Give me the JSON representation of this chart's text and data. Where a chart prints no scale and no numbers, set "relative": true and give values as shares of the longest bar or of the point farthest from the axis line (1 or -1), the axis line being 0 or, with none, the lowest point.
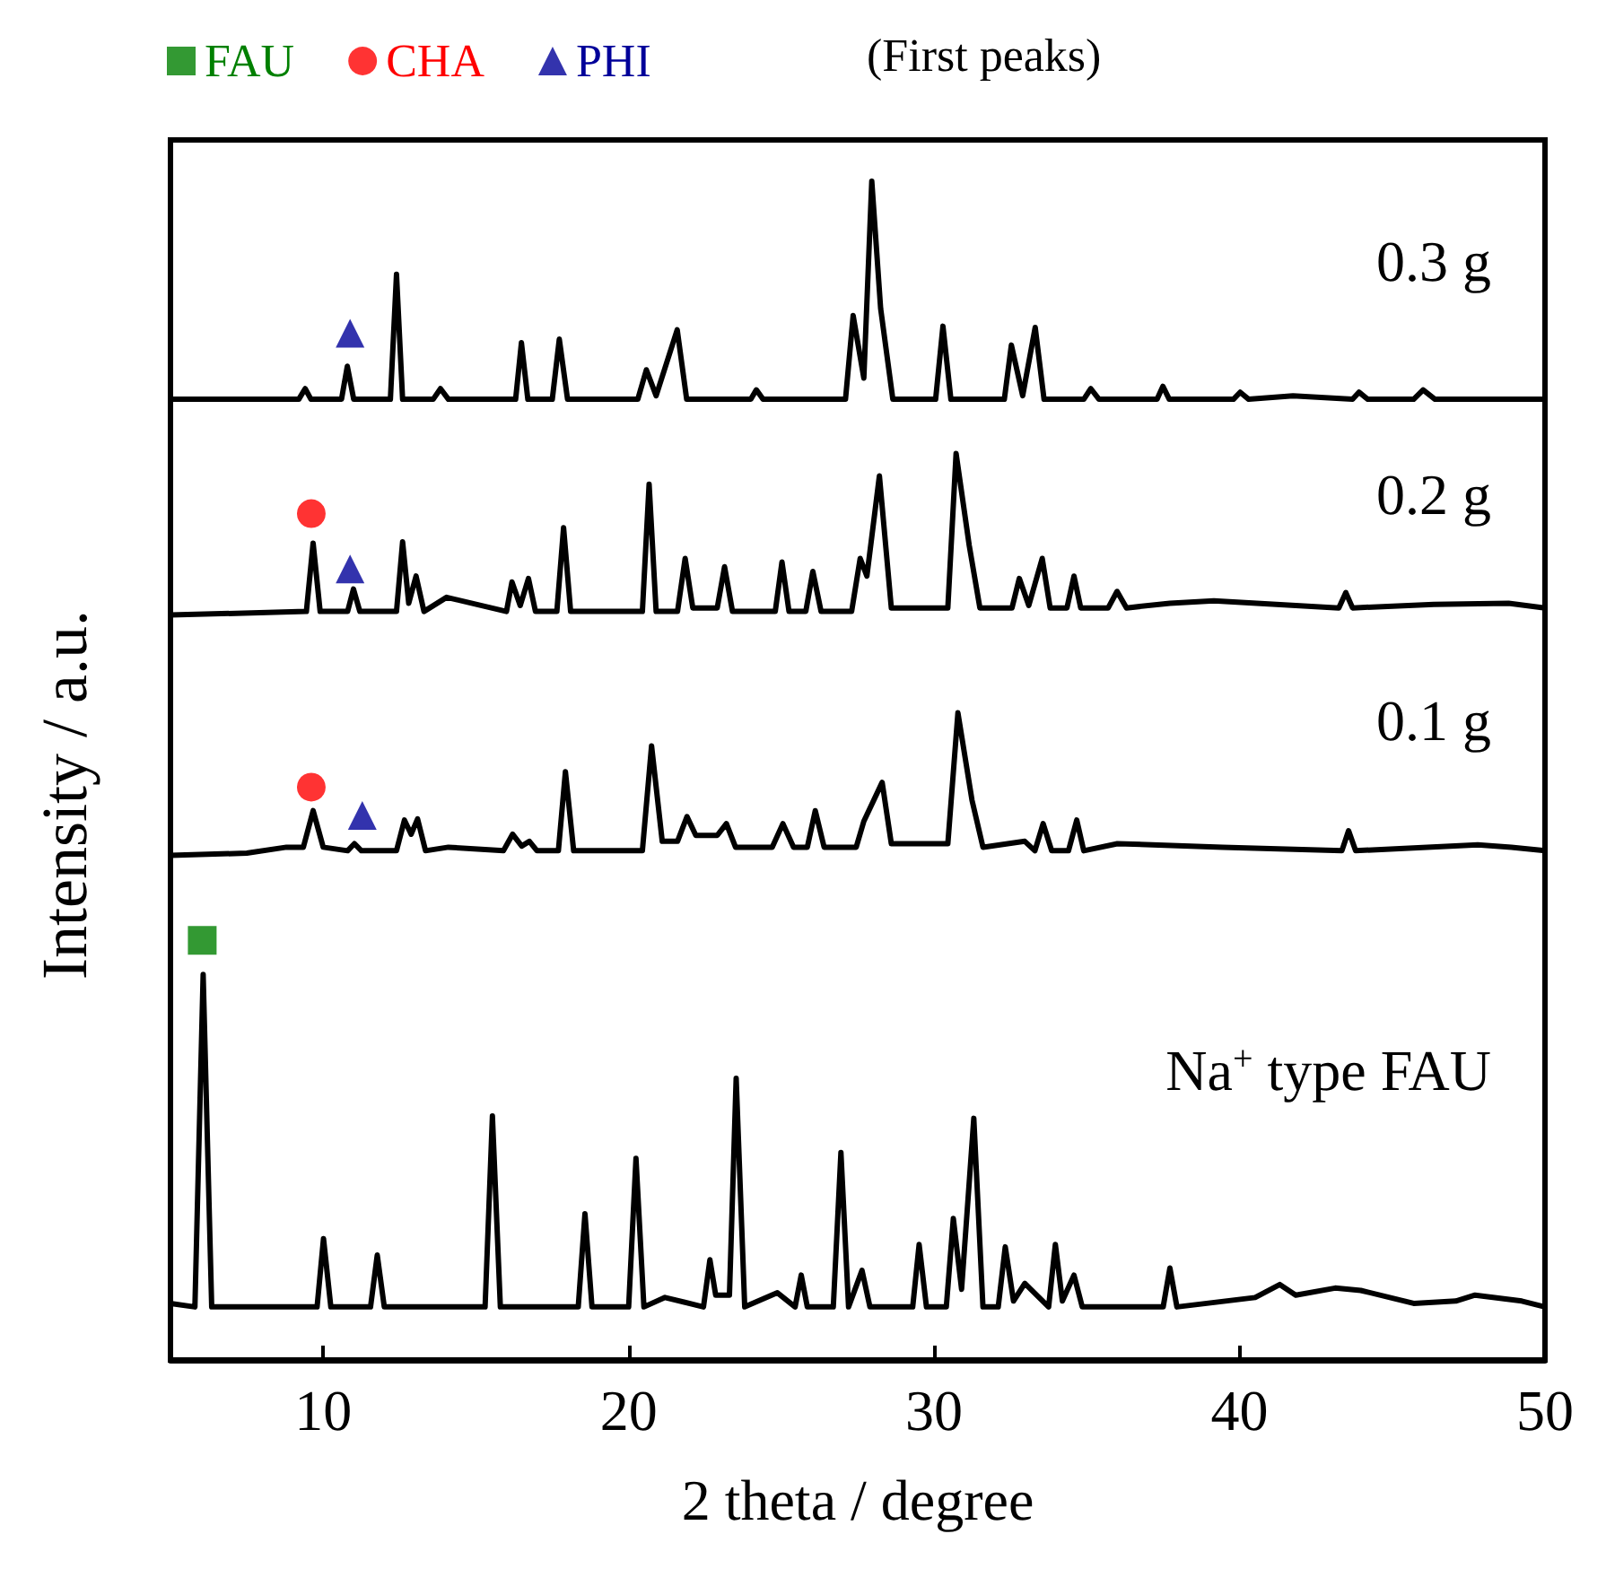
{
  "chart_data": {
    "type": "line",
    "relative": true,
    "xlabel": "2 theta / degree",
    "ylabel": "Intensity / a.u.",
    "xlim": [
      5,
      50
    ],
    "xticks": [
      10,
      20,
      30,
      40,
      50
    ],
    "grid": false,
    "legend": "top",
    "legend_title": "(First peaks)",
    "line_style": "solid",
    "series": [
      {
        "name": "0.3 g",
        "color": "#000000",
        "x": [
          5,
          9.2,
          9.41,
          9.6,
          10.6,
          10.79,
          11.0,
          12.2,
          12.4,
          12.6,
          13.6,
          13.84,
          14.1,
          16.3,
          16.49,
          16.7,
          17.5,
          17.73,
          18.0,
          20.3,
          20.58,
          20.9,
          21.59,
          21.9,
          24.0,
          24.18,
          24.4,
          27.1,
          27.35,
          27.7,
          27.96,
          28.25,
          28.65,
          30.05,
          30.29,
          30.55,
          32.3,
          32.53,
          32.9,
          33.31,
          33.6,
          34.9,
          35.13,
          35.4,
          37.3,
          37.49,
          37.7,
          39.8,
          40.02,
          40.3,
          41.75,
          43.7,
          43.91,
          44.2,
          45.7,
          46.01,
          46.4,
          50
        ],
        "values": [
          0.815,
          0.815,
          0.824,
          0.815,
          0.815,
          0.843,
          0.815,
          0.815,
          0.921,
          0.815,
          0.815,
          0.824,
          0.815,
          0.815,
          0.863,
          0.815,
          0.815,
          0.866,
          0.815,
          0.815,
          0.84,
          0.818,
          0.874,
          0.815,
          0.815,
          0.823,
          0.815,
          0.815,
          0.886,
          0.833,
          1.0,
          0.892,
          0.815,
          0.815,
          0.877,
          0.815,
          0.815,
          0.861,
          0.818,
          0.876,
          0.815,
          0.815,
          0.824,
          0.815,
          0.815,
          0.826,
          0.815,
          0.815,
          0.821,
          0.815,
          0.818,
          0.815,
          0.821,
          0.815,
          0.815,
          0.823,
          0.815,
          0.815
        ]
      },
      {
        "name": "0.2 g",
        "color": "#000000",
        "x": [
          5,
          9.45,
          9.67,
          9.9,
          10.8,
          10.99,
          11.2,
          12.4,
          12.6,
          12.8,
          13.04,
          13.3,
          14.04,
          16.0,
          16.18,
          16.45,
          16.72,
          16.95,
          17.65,
          17.87,
          18.1,
          20.45,
          20.67,
          20.9,
          21.6,
          21.85,
          22.1,
          22.9,
          23.14,
          23.4,
          24.8,
          25.02,
          25.25,
          25.8,
          26.03,
          26.3,
          27.3,
          27.58,
          27.8,
          28.21,
          28.6,
          30.45,
          30.72,
          31.15,
          31.5,
          32.55,
          32.79,
          33.1,
          33.54,
          33.8,
          34.35,
          34.58,
          34.8,
          35.7,
          35.99,
          36.3,
          37.72,
          39.16,
          43.25,
          43.48,
          43.7,
          46.36,
          48.81,
          50
        ],
        "values": [
          0.632,
          0.635,
          0.693,
          0.635,
          0.635,
          0.654,
          0.635,
          0.635,
          0.694,
          0.642,
          0.665,
          0.635,
          0.647,
          0.635,
          0.66,
          0.64,
          0.663,
          0.635,
          0.635,
          0.706,
          0.635,
          0.635,
          0.743,
          0.635,
          0.635,
          0.68,
          0.638,
          0.638,
          0.673,
          0.635,
          0.635,
          0.677,
          0.635,
          0.635,
          0.669,
          0.635,
          0.635,
          0.68,
          0.665,
          0.75,
          0.638,
          0.638,
          0.769,
          0.691,
          0.638,
          0.638,
          0.663,
          0.64,
          0.68,
          0.638,
          0.638,
          0.665,
          0.638,
          0.638,
          0.652,
          0.638,
          0.642,
          0.644,
          0.638,
          0.651,
          0.638,
          0.641,
          0.642,
          0.638
        ]
      },
      {
        "name": "0.1 g",
        "color": "#000000",
        "x": [
          5,
          7.5,
          8.8,
          9.35,
          9.67,
          10.0,
          10.8,
          11.02,
          11.25,
          12.4,
          12.66,
          12.88,
          13.09,
          13.35,
          14.1,
          15.9,
          16.2,
          16.5,
          16.75,
          17.0,
          17.7,
          17.93,
          18.2,
          20.45,
          20.75,
          21.1,
          21.6,
          21.91,
          22.2,
          22.9,
          23.2,
          23.5,
          24.7,
          25.05,
          25.4,
          25.85,
          26.11,
          26.4,
          27.45,
          27.7,
          28.3,
          28.6,
          30.45,
          30.78,
          31.24,
          31.6,
          32.97,
          33.3,
          33.57,
          33.85,
          34.4,
          34.67,
          34.9,
          36.0,
          39.45,
          43.35,
          43.57,
          43.8,
          47.8,
          48.9,
          50
        ],
        "values": [
          0.428,
          0.43,
          0.435,
          0.435,
          0.466,
          0.435,
          0.432,
          0.438,
          0.432,
          0.432,
          0.458,
          0.446,
          0.459,
          0.432,
          0.435,
          0.432,
          0.446,
          0.436,
          0.44,
          0.432,
          0.432,
          0.499,
          0.432,
          0.432,
          0.521,
          0.44,
          0.44,
          0.461,
          0.445,
          0.445,
          0.455,
          0.435,
          0.435,
          0.455,
          0.435,
          0.435,
          0.466,
          0.435,
          0.435,
          0.457,
          0.49,
          0.438,
          0.438,
          0.549,
          0.475,
          0.435,
          0.44,
          0.432,
          0.455,
          0.432,
          0.432,
          0.458,
          0.432,
          0.438,
          0.435,
          0.432,
          0.449,
          0.432,
          0.437,
          0.435,
          0.432
        ]
      },
      {
        "name": "Na$^{+}$ type FAU",
        "color": "#000000",
        "x": [
          5,
          5.8,
          6.07,
          6.35,
          9.8,
          10.01,
          10.25,
          11.55,
          11.77,
          12.0,
          15.3,
          15.54,
          15.8,
          18.35,
          18.57,
          18.8,
          20.0,
          20.24,
          20.5,
          21.19,
          22.45,
          22.66,
          22.85,
          23.3,
          23.52,
          23.8,
          24.87,
          25.45,
          25.65,
          25.85,
          26.7,
          26.95,
          27.2,
          27.64,
          27.9,
          29.3,
          29.51,
          29.75,
          30.4,
          30.63,
          30.9,
          31.3,
          31.6,
          32.1,
          32.33,
          32.6,
          32.97,
          33.75,
          33.97,
          34.2,
          34.58,
          34.85,
          37.5,
          37.72,
          37.95,
          40.51,
          41.32,
          41.84,
          43.13,
          43.97,
          45.7,
          47.08,
          47.71,
          49.24,
          50
        ],
        "values": [
          0.048,
          0.045,
          0.327,
          0.045,
          0.045,
          0.103,
          0.045,
          0.045,
          0.089,
          0.045,
          0.045,
          0.207,
          0.045,
          0.045,
          0.124,
          0.045,
          0.045,
          0.171,
          0.045,
          0.053,
          0.045,
          0.085,
          0.055,
          0.055,
          0.239,
          0.045,
          0.057,
          0.045,
          0.072,
          0.045,
          0.045,
          0.176,
          0.045,
          0.076,
          0.045,
          0.045,
          0.098,
          0.045,
          0.045,
          0.12,
          0.06,
          0.205,
          0.045,
          0.045,
          0.096,
          0.05,
          0.065,
          0.045,
          0.098,
          0.05,
          0.072,
          0.045,
          0.045,
          0.078,
          0.045,
          0.053,
          0.064,
          0.055,
          0.061,
          0.059,
          0.048,
          0.05,
          0.055,
          0.05,
          0.045
        ]
      },
      {
        "type": "scatter",
        "name": "FAU",
        "color": "#008000",
        "marker": "square",
        "x": [
          6.04
        ],
        "values": [
          0.356
        ]
      },
      {
        "type": "scatter",
        "name": "CHA",
        "color": "#ff0000",
        "marker": "circle",
        "x": [
          9.61,
          9.61
        ],
        "values": [
          0.718,
          0.486
        ]
      },
      {
        "type": "scatter",
        "name": "PHI",
        "color": "#000099",
        "marker": "triangle",
        "x": [
          10.88,
          10.88,
          11.28
        ],
        "values": [
          0.871,
          0.671,
          0.462
        ]
      }
    ]
  }
}
